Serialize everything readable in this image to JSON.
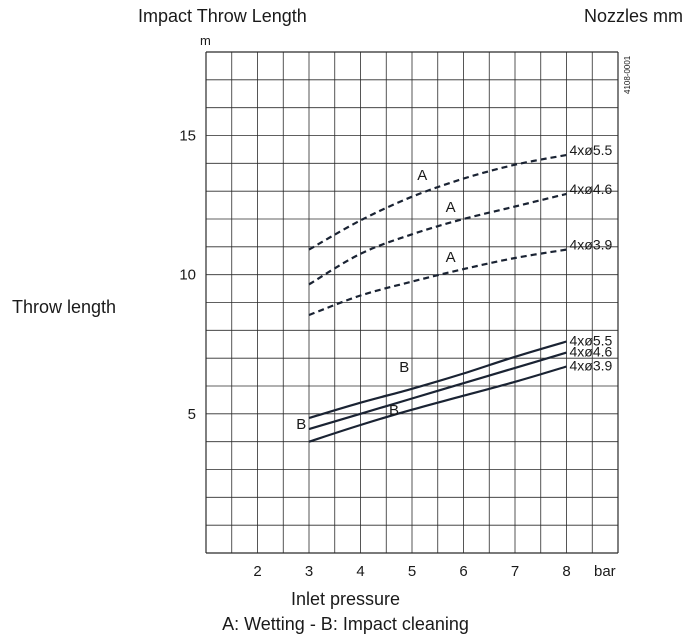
{
  "chart_data": {
    "type": "line",
    "title": "Impact Throw Length",
    "legend_title": "Nozzles mm",
    "ylabel": "Throw length",
    "yunit": "m",
    "xlabel": "Inlet pressure",
    "xunit": "bar",
    "caption": "A: Wetting - B: Impact cleaning",
    "figure_code": "4108-0001",
    "xlim": [
      1,
      9
    ],
    "ylim": [
      0,
      18
    ],
    "x_ticks": [
      2,
      3,
      4,
      5,
      6,
      7,
      8
    ],
    "y_ticks": [
      5,
      10,
      15
    ],
    "grid": true,
    "series": [
      {
        "name": "4xø5.5",
        "group": "A",
        "style": "dashed",
        "x": [
          3,
          4,
          5,
          6,
          7,
          8
        ],
        "y": [
          10.9,
          11.95,
          12.8,
          13.45,
          13.95,
          14.3
        ]
      },
      {
        "name": "4xø4.6",
        "group": "A",
        "style": "dashed",
        "x": [
          3,
          4,
          5,
          6,
          7,
          8
        ],
        "y": [
          9.65,
          10.75,
          11.45,
          12.0,
          12.45,
          12.9
        ]
      },
      {
        "name": "4xø3.9",
        "group": "A",
        "style": "dashed",
        "x": [
          3,
          4,
          5,
          6,
          7,
          8
        ],
        "y": [
          8.55,
          9.25,
          9.75,
          10.2,
          10.6,
          10.9
        ]
      },
      {
        "name": "4xø5.5",
        "group": "B",
        "style": "solid",
        "x": [
          3,
          4,
          5,
          6,
          7,
          8
        ],
        "y": [
          4.85,
          5.4,
          5.9,
          6.45,
          7.05,
          7.6
        ]
      },
      {
        "name": "4xø4.6",
        "group": "B",
        "style": "solid",
        "x": [
          3,
          4,
          5,
          6,
          7,
          8
        ],
        "y": [
          4.45,
          5.0,
          5.55,
          6.1,
          6.65,
          7.2
        ]
      },
      {
        "name": "4xø3.9",
        "group": "B",
        "style": "solid",
        "x": [
          3,
          4,
          5,
          6,
          7,
          8
        ],
        "y": [
          4.0,
          4.6,
          5.15,
          5.65,
          6.15,
          6.7
        ]
      }
    ],
    "annotations": [
      {
        "text": "A",
        "x": 5.2,
        "y": 13.4
      },
      {
        "text": "A",
        "x": 5.75,
        "y": 12.25
      },
      {
        "text": "A",
        "x": 5.75,
        "y": 10.45
      },
      {
        "text": "B",
        "x": 4.85,
        "y": 6.5
      },
      {
        "text": "B",
        "x": 2.85,
        "y": 4.45
      },
      {
        "text": "B",
        "x": 4.65,
        "y": 4.95
      }
    ]
  }
}
